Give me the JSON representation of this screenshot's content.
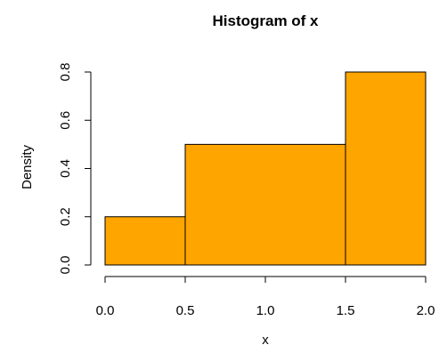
{
  "chart_data": {
    "type": "histogram",
    "title": "Histogram of x",
    "xlabel": "x",
    "ylabel": "Density",
    "bins": [
      {
        "start": 0.0,
        "end": 0.5,
        "density": 0.2
      },
      {
        "start": 0.5,
        "end": 1.5,
        "density": 0.5
      },
      {
        "start": 1.5,
        "end": 2.0,
        "density": 0.8
      }
    ],
    "xlim": [
      0.0,
      2.0
    ],
    "ylim": [
      0.0,
      0.8
    ],
    "x_ticks": [
      0.0,
      0.5,
      1.0,
      1.5,
      2.0
    ],
    "x_tick_labels": [
      "0.0",
      "0.5",
      "1.0",
      "1.5",
      "2.0"
    ],
    "y_ticks": [
      0.0,
      0.2,
      0.4,
      0.6,
      0.8
    ],
    "y_tick_labels": [
      "0.0",
      "0.2",
      "0.4",
      "0.6",
      "0.8"
    ],
    "bar_color": "#FFA500",
    "bar_border_color": "#000000",
    "grid": false,
    "legend": "none"
  }
}
